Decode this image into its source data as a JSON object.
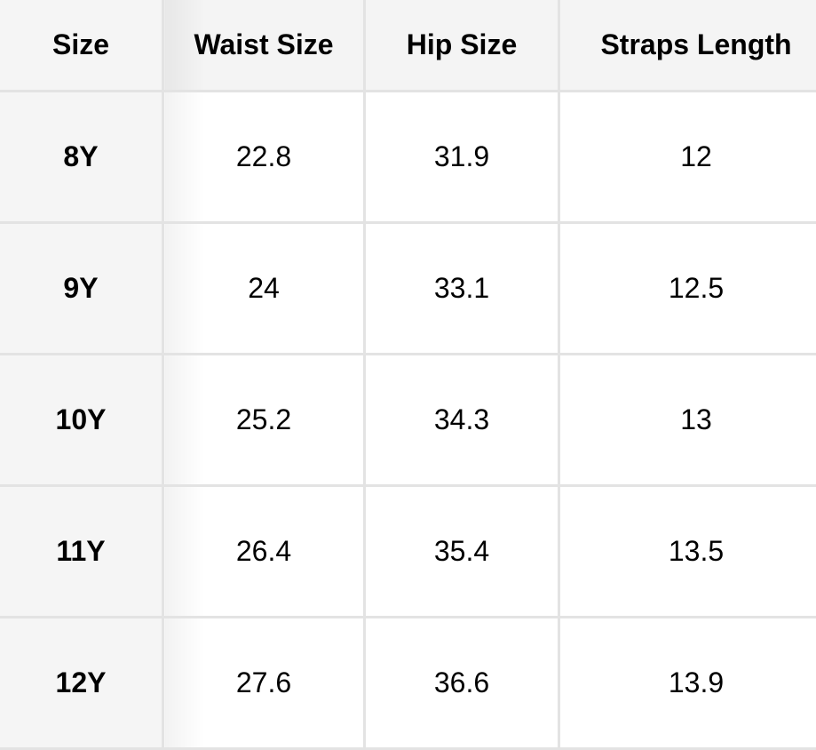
{
  "table": {
    "headers": [
      "Size",
      "Waist Size",
      "Hip Size",
      "Straps Length"
    ],
    "rows": [
      [
        "8Y",
        "22.8",
        "31.9",
        "12"
      ],
      [
        "9Y",
        "24",
        "33.1",
        "12.5"
      ],
      [
        "10Y",
        "25.2",
        "34.3",
        "13"
      ],
      [
        "11Y",
        "26.4",
        "35.4",
        "13.5"
      ],
      [
        "12Y",
        "27.6",
        "36.6",
        "13.9"
      ]
    ]
  }
}
